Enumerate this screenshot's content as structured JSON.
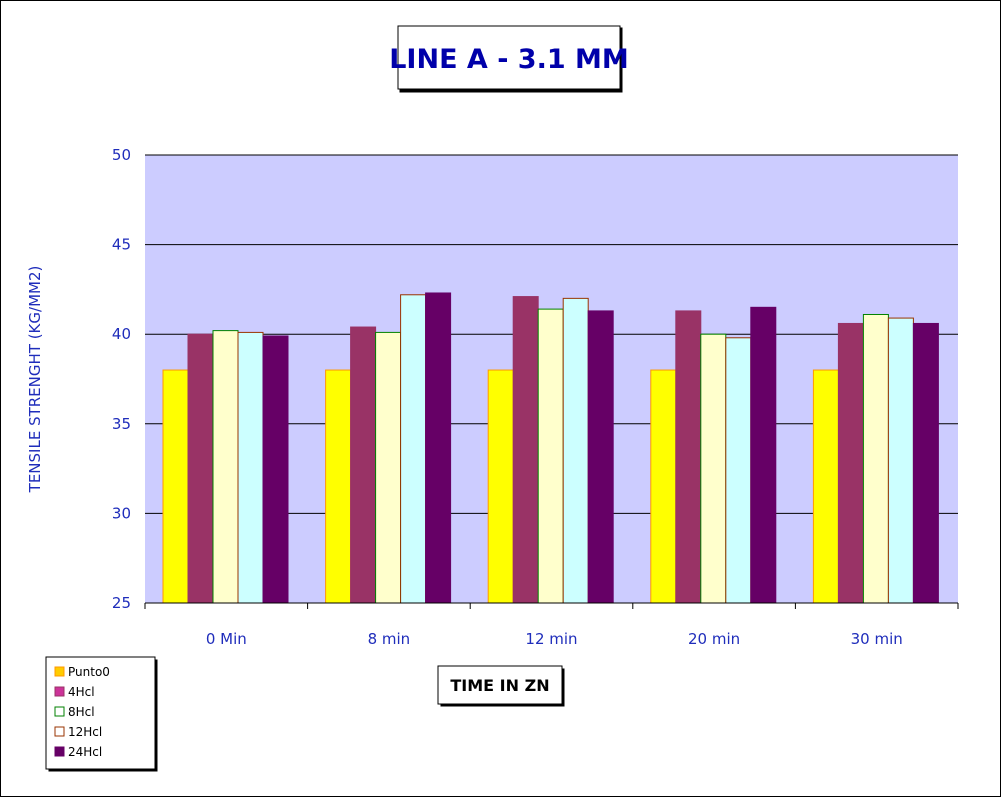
{
  "chart_data": {
    "type": "bar",
    "title": "LINE A - 3.1 MM",
    "xlabel": "TIME IN ZN",
    "ylabel": "TENSILE STRENGHT (KG/MM2)",
    "ylim": [
      25,
      50
    ],
    "yticks": [
      "25",
      "30",
      "35",
      "40",
      "45",
      "50"
    ],
    "grid": true,
    "legend_position": "bottom-left",
    "categories": [
      "0 Min",
      "8 min",
      "12 min",
      "20 min",
      "30 min"
    ],
    "series": [
      {
        "name": "Punto0",
        "values": [
          38.0,
          38.0,
          38.0,
          38.0,
          38.0
        ]
      },
      {
        "name": "4Hcl",
        "values": [
          40.0,
          40.4,
          42.1,
          41.3,
          40.6
        ]
      },
      {
        "name": "8Hcl",
        "values": [
          40.2,
          40.1,
          41.4,
          40.0,
          41.1
        ]
      },
      {
        "name": "12Hcl",
        "values": [
          40.1,
          42.2,
          42.0,
          39.8,
          40.9
        ]
      },
      {
        "name": "24Hcl",
        "values": [
          39.9,
          42.3,
          41.3,
          41.5,
          40.6
        ]
      }
    ]
  },
  "colors": {
    "plot_background": "#ccccff",
    "title_text": "#0000aa",
    "axis_text": "#1f2dbb",
    "series_fill": [
      "#ffff00",
      "#993366",
      "#ffffcc",
      "#ccffff",
      "#660066"
    ],
    "series_stroke": [
      "#ff9900",
      "#993366",
      "#008000",
      "#993300",
      "#660066"
    ],
    "legend_fill": [
      "#ffcc00",
      "#cc3399",
      "#ffffff",
      "#ffffff",
      "#660066"
    ],
    "legend_stroke": [
      "#ff9900",
      "#993366",
      "#008000",
      "#993300",
      "#660066"
    ]
  }
}
